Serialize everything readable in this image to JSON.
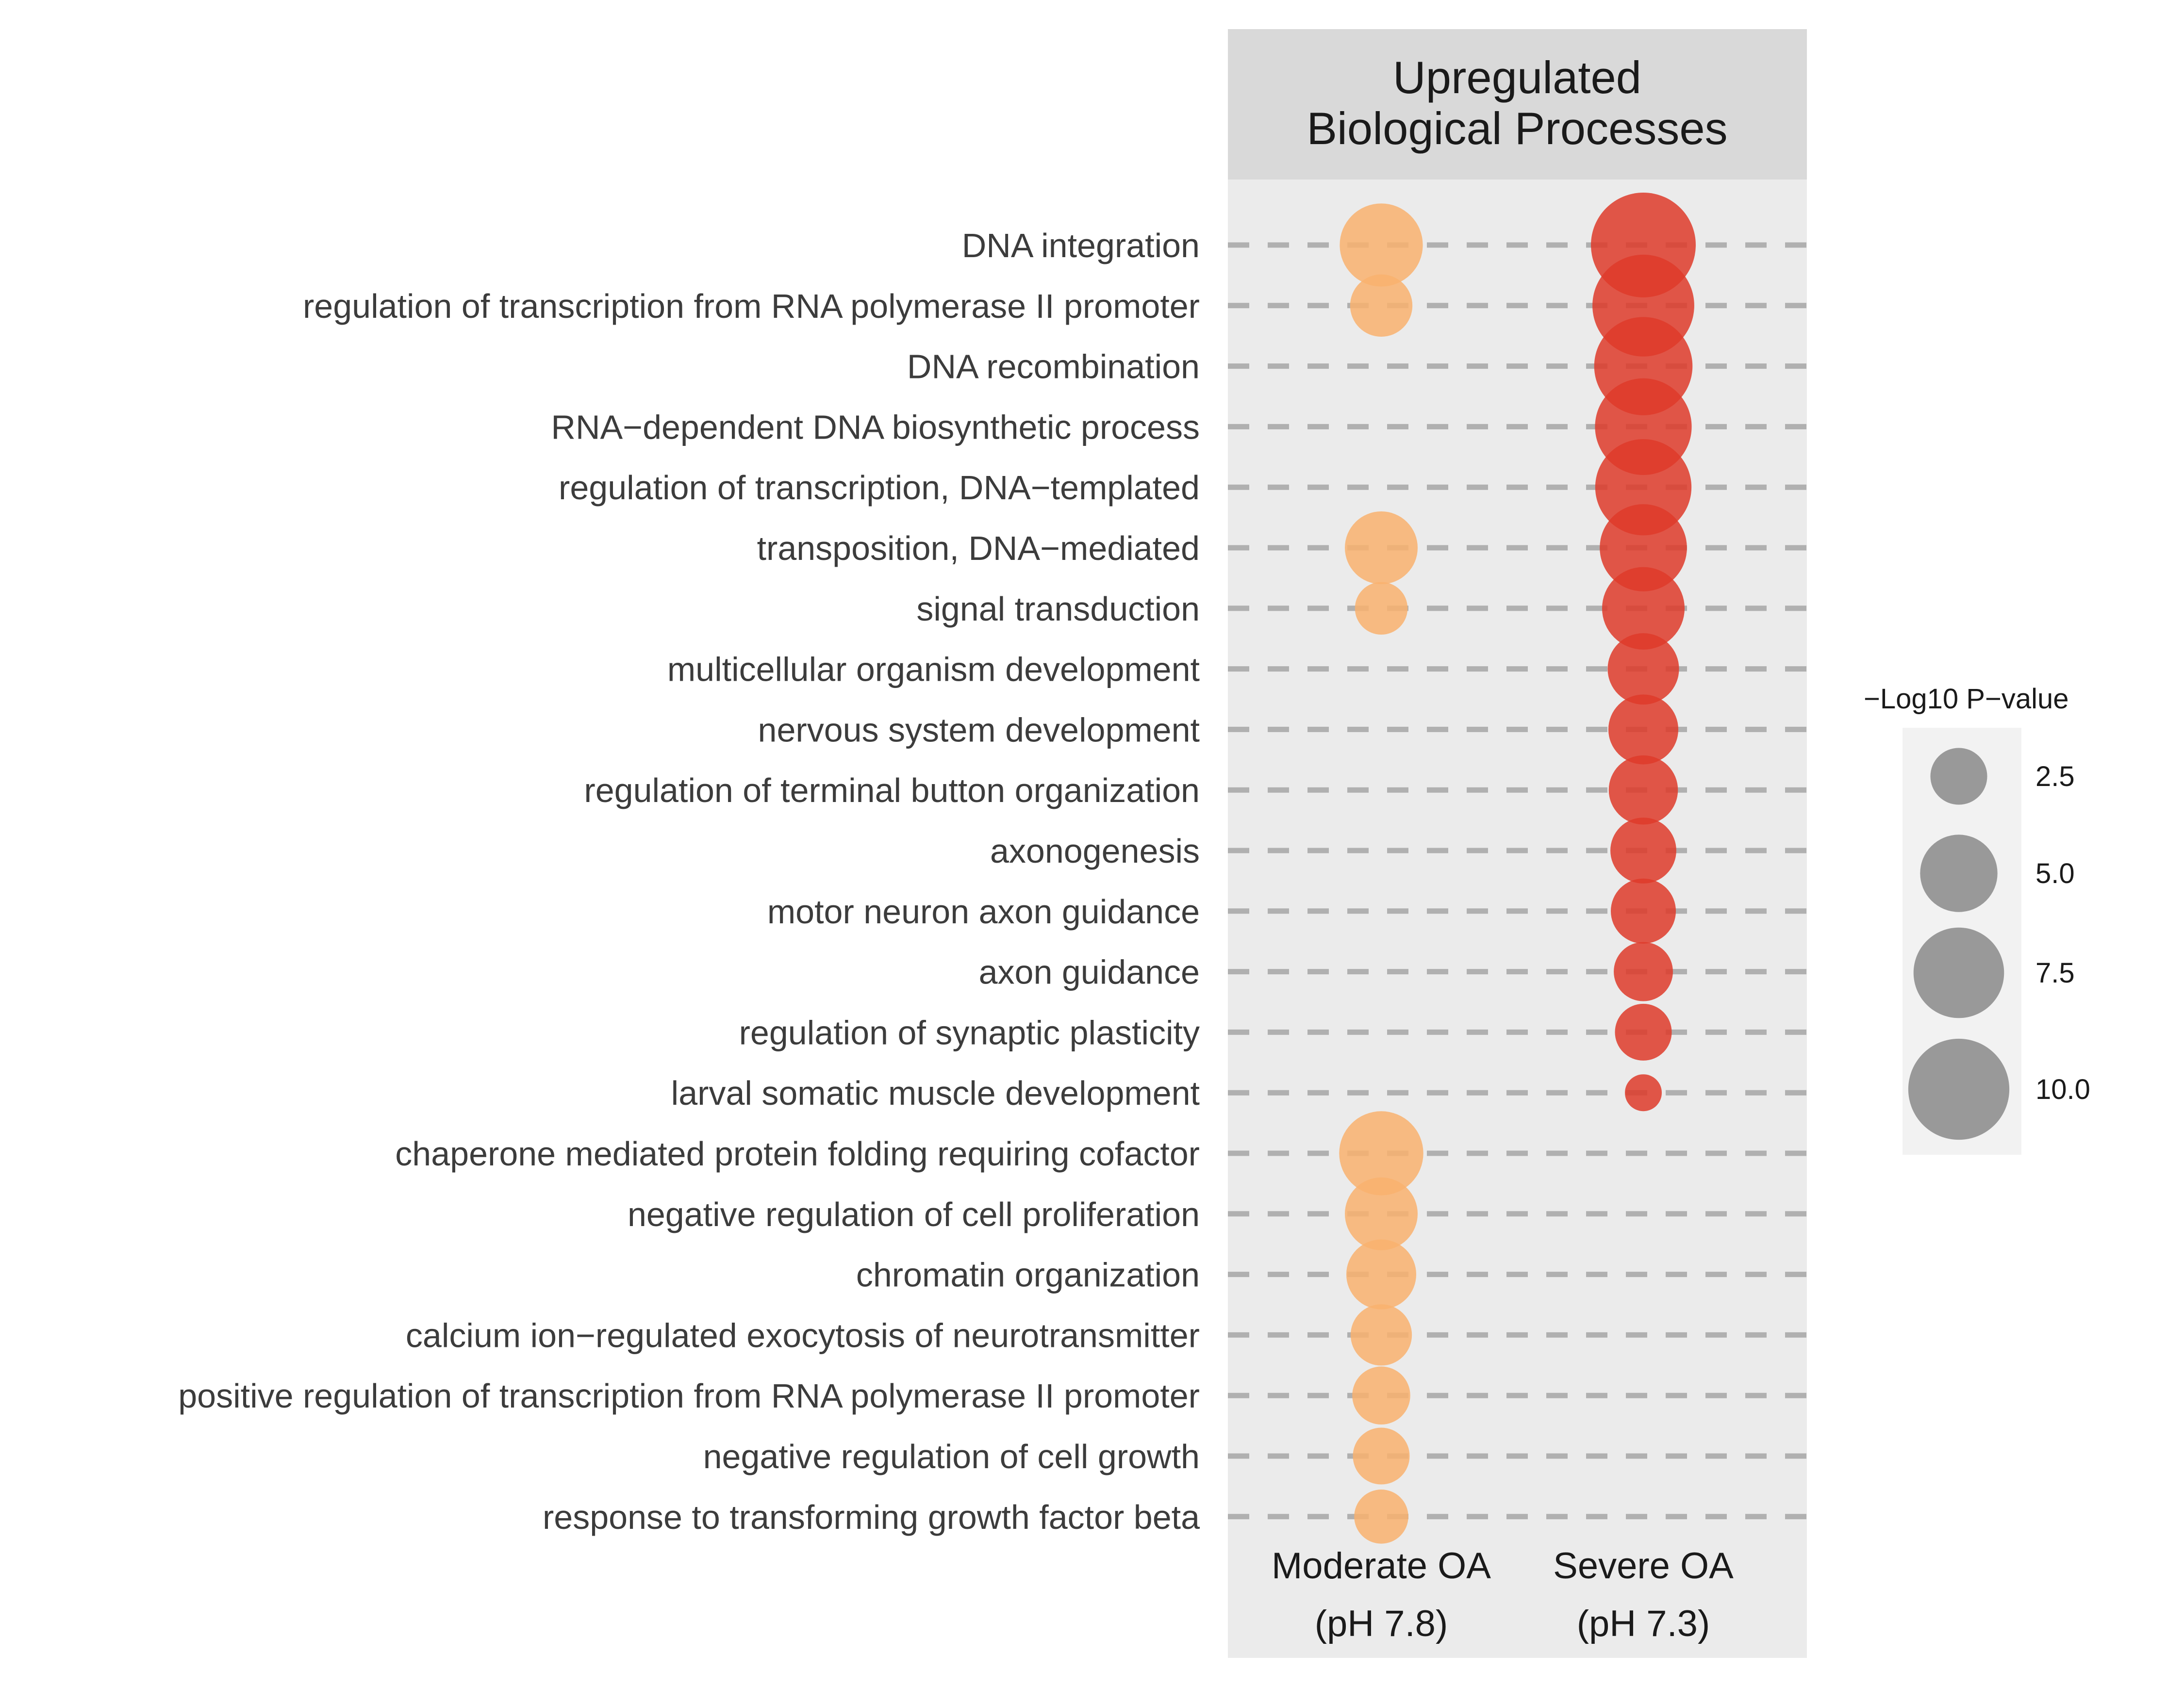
{
  "chart_data": {
    "type": "scatter",
    "title": "Upregulated\nBiological Processes",
    "x_categories": [
      {
        "line1": "Moderate OA",
        "line2": "(pH 7.8)"
      },
      {
        "line1": "Severe OA",
        "line2": "(pH 7.3)"
      }
    ],
    "categories": [
      "DNA integration",
      "regulation of transcription from RNA polymerase II promoter",
      "DNA recombination",
      "RNA−dependent DNA biosynthetic process",
      "regulation of transcription, DNA−templated",
      "transposition, DNA−mediated",
      "signal transduction",
      "multicellular organism development",
      "nervous system development",
      "regulation of terminal button organization",
      "axonogenesis",
      "motor neuron axon guidance",
      "axon guidance",
      "regulation of synaptic plasticity",
      "larval somatic muscle development",
      "chaperone mediated protein folding requiring cofactor",
      "negative regulation of cell proliferation",
      "chromatin organization",
      "calcium ion−regulated exocytosis of neurotransmitter",
      "positive regulation of transcription from RNA polymerase II promoter",
      "negative regulation of cell growth",
      "response to transforming growth factor beta"
    ],
    "series": [
      {
        "color": "#f9b26e",
        "values": [
          6.0,
          3.0,
          null,
          null,
          null,
          4.3,
          2.2,
          null,
          null,
          null,
          null,
          null,
          null,
          null,
          null,
          6.2,
          4.3,
          3.9,
          2.9,
          2.6,
          2.5,
          2.3
        ]
      },
      {
        "color": "#de3b2a",
        "values": [
          11.0,
          10.2,
          9.3,
          8.9,
          8.8,
          6.8,
          5.9,
          4.1,
          3.9,
          3.8,
          3.4,
          3.3,
          2.7,
          2.5,
          1.7,
          null,
          null,
          null,
          null,
          null,
          null,
          null
        ]
      }
    ],
    "size_legend": {
      "title": "−Log10 P−value",
      "breaks": [
        "2.5",
        "5.0",
        "7.5",
        "10.0"
      ],
      "values": [
        2.5,
        5.0,
        7.5,
        10.0
      ],
      "color": "#999999"
    },
    "size_range": [
      1.7,
      11.0
    ],
    "panel_color": "#ebebeb",
    "strip_color": "#d9d9d9",
    "gridline_color": "#b0b0b0",
    "gridline_style": "dashed",
    "legend_position": "right"
  }
}
